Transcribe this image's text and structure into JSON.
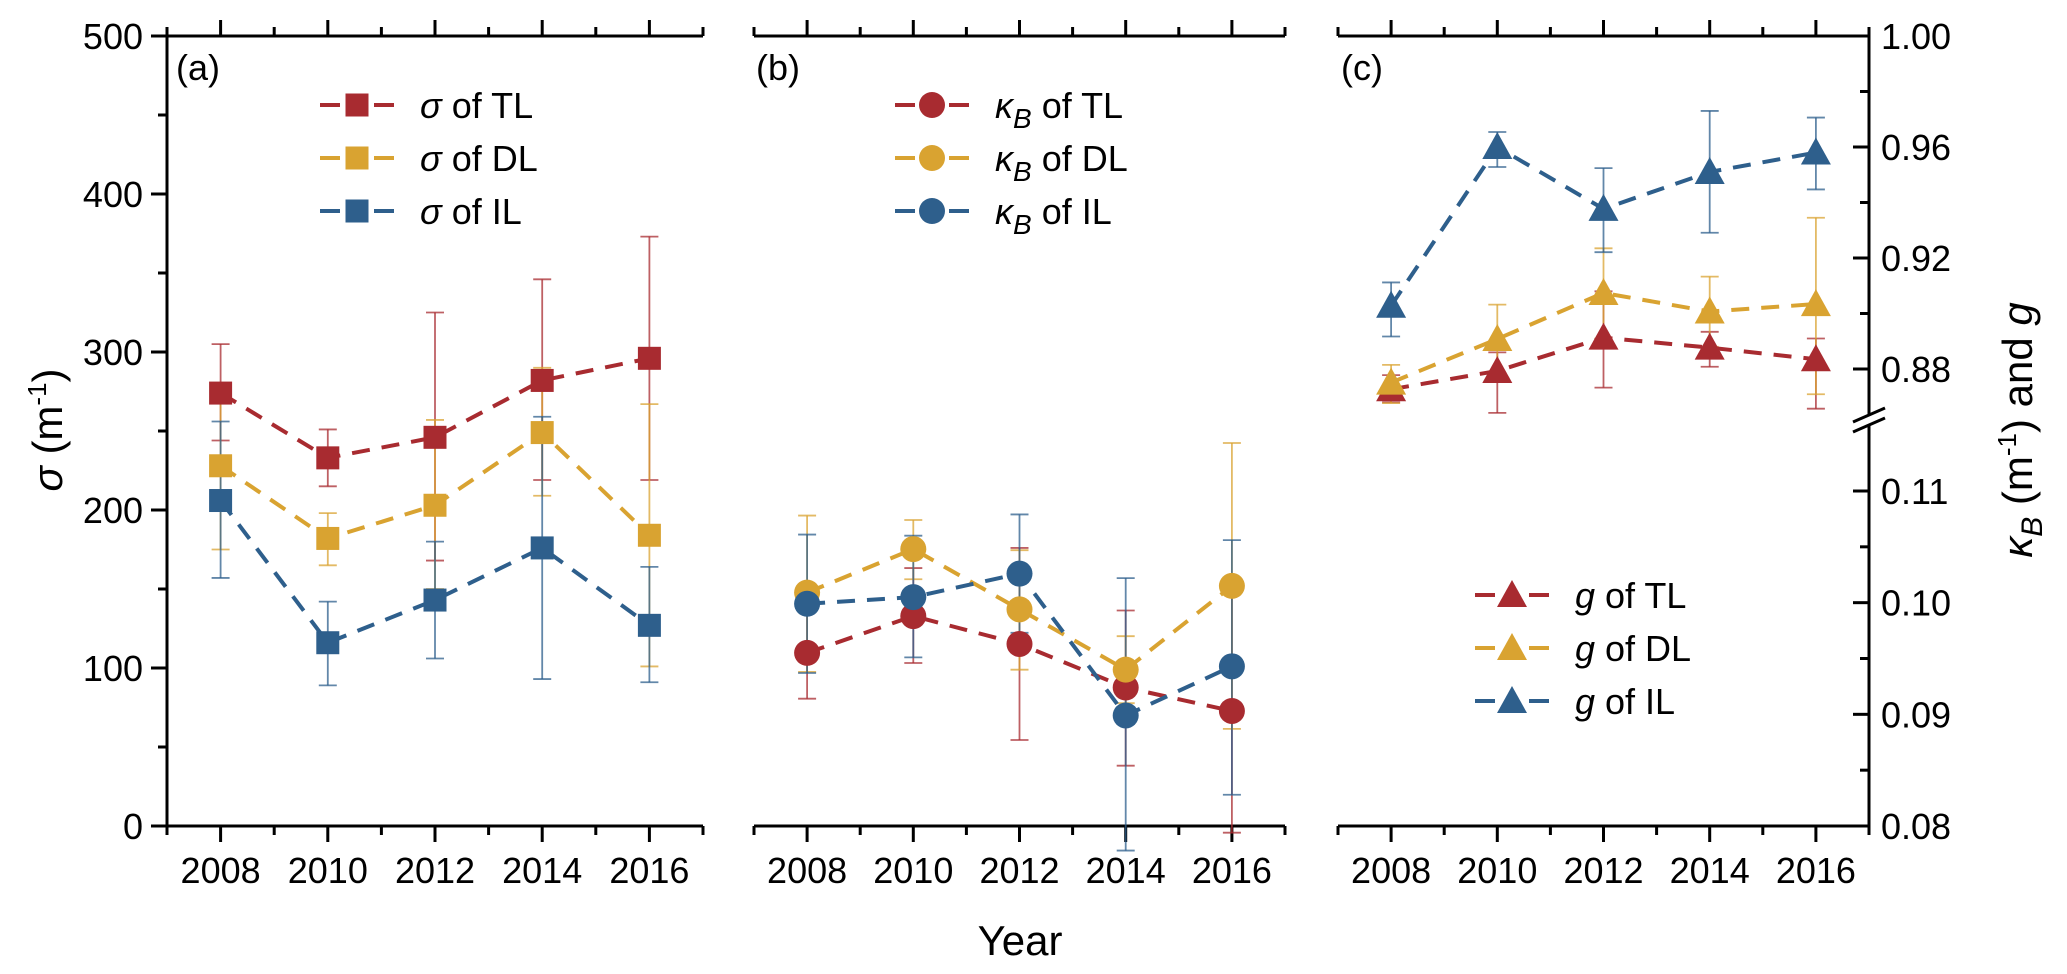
{
  "chart_data": [
    {
      "panel": "(a)",
      "type": "line",
      "marker": "square",
      "x": [
        2008,
        2010,
        2012,
        2014,
        2016
      ],
      "xlabel": "Year",
      "ylabel": "σ (m⁻¹)",
      "ylabel_parts": {
        "symbol": "σ",
        "unit_open": " (m",
        "sup": "-1",
        "unit_close": ")"
      },
      "ylim": [
        0,
        500
      ],
      "yticks": [
        0,
        100,
        200,
        300,
        400,
        500
      ],
      "xlim": [
        2007,
        2017
      ],
      "legend_position": "top-center",
      "series": [
        {
          "name": "σ of TL",
          "symbol": "σ",
          "suffix": " of TL",
          "color": "#A82B30",
          "values": [
            274,
            233,
            246,
            282,
            296
          ],
          "err_upper": [
            305,
            251,
            325,
            346,
            373
          ],
          "err_lower": [
            244,
            215,
            168,
            219,
            219
          ]
        },
        {
          "name": "σ of DL",
          "symbol": "σ",
          "suffix": " of DL",
          "color": "#D9A331",
          "values": [
            228,
            182,
            203,
            249,
            184
          ],
          "err_upper": [
            280,
            198,
            257,
            290,
            267
          ],
          "err_lower": [
            175,
            165,
            150,
            209,
            101
          ]
        },
        {
          "name": "σ of IL",
          "symbol": "σ",
          "suffix": " of IL",
          "color": "#2E5F8C",
          "values": [
            206,
            116,
            143,
            176,
            127
          ],
          "err_upper": [
            256,
            142,
            180,
            259,
            164
          ],
          "err_lower": [
            157,
            89,
            106,
            93,
            91
          ]
        }
      ]
    },
    {
      "panel": "(b)",
      "type": "line",
      "marker": "circle",
      "x": [
        2008,
        2010,
        2012,
        2014,
        2016
      ],
      "xlabel": "Year",
      "ylabel": "κB (m⁻¹)",
      "ylim": [
        0.08,
        0.11
      ],
      "y_axis_shared_with": "(c) right axis, lower segment",
      "xlim": [
        2007,
        2017
      ],
      "legend_position": "top-center",
      "series": [
        {
          "name": "κB of TL",
          "symbol": "κ",
          "sub": "B",
          "suffix": " of TL",
          "color": "#A82B30",
          "values": [
            0.0955,
            0.0988,
            0.0963,
            0.0924,
            0.0903
          ],
          "err_upper": [
            0.0996,
            0.1031,
            0.1049,
            0.0993,
            0.1012
          ],
          "err_lower": [
            0.0914,
            0.0946,
            0.0877,
            0.0854,
            0.0794
          ]
        },
        {
          "name": "κB of DL",
          "symbol": "κ",
          "sub": "B",
          "suffix": " of DL",
          "color": "#D9A331",
          "values": [
            0.1009,
            0.1048,
            0.0994,
            0.094,
            0.1015
          ],
          "err_upper": [
            0.1078,
            0.1074,
            0.1047,
            0.097,
            0.1143
          ],
          "err_lower": [
            0.0938,
            0.1021,
            0.094,
            0.091,
            0.0887
          ]
        },
        {
          "name": "κB of IL",
          "symbol": "κ",
          "sub": "B",
          "suffix": " of IL",
          "color": "#2E5F8C",
          "values": [
            0.0999,
            0.1005,
            0.1026,
            0.0899,
            0.0943
          ],
          "err_upper": [
            0.1061,
            0.106,
            0.1079,
            0.1022,
            0.1056
          ],
          "err_lower": [
            0.0937,
            0.0951,
            0.0973,
            0.0778,
            0.0828
          ]
        }
      ]
    },
    {
      "panel": "(c)",
      "type": "line",
      "marker": "triangle",
      "x": [
        2008,
        2010,
        2012,
        2014,
        2016
      ],
      "xlabel": "Year",
      "ylabel": "κB (m⁻¹) and g",
      "ylabel_parts": {
        "symbol": "κ",
        "sub": "B",
        "unit_open": " (m",
        "sup": "-1",
        "unit_close": ") and ",
        "g": "g"
      },
      "y_axis_side": "right",
      "y_axis_break": true,
      "ylim_upper": [
        0.88,
        1.0
      ],
      "yticks_upper": [
        "0.88",
        "0.92",
        "0.96",
        "1.00"
      ],
      "ylim_lower": [
        0.08,
        0.11
      ],
      "yticks_lower": [
        "0.08",
        "0.09",
        "0.10",
        "0.11"
      ],
      "xlim": [
        2007,
        2017
      ],
      "legend_position": "bottom-center",
      "series": [
        {
          "name": "g of TL",
          "symbol": "g",
          "suffix": " of TL",
          "color": "#A82B30",
          "values": [
            0.8727,
            0.8793,
            0.8913,
            0.8877,
            0.8835
          ],
          "err_upper": [
            0.8778,
            0.886,
            0.908,
            0.8934,
            0.891
          ],
          "err_lower": [
            0.868,
            0.8642,
            0.8733,
            0.8808,
            0.8657
          ]
        },
        {
          "name": "g of DL",
          "symbol": "g",
          "suffix": " of DL",
          "color": "#D9A331",
          "values": [
            0.8751,
            0.8908,
            0.9074,
            0.9007,
            0.9034
          ],
          "err_upper": [
            0.8815,
            0.9032,
            0.9235,
            0.9133,
            0.9345
          ],
          "err_lower": [
            0.8677,
            0.8785,
            0.891,
            0.888,
            0.8709
          ]
        },
        {
          "name": "g of IL",
          "symbol": "g",
          "suffix": " of IL",
          "color": "#2E5F8C",
          "values": [
            0.9028,
            0.96,
            0.9377,
            0.951,
            0.958
          ],
          "err_upper": [
            0.9112,
            0.9654,
            0.9524,
            0.973,
            0.9706
          ],
          "err_lower": [
            0.8917,
            0.9528,
            0.9221,
            0.9291,
            0.9447
          ]
        }
      ]
    }
  ],
  "labels": {
    "panel_a": "(a)",
    "panel_b": "(b)",
    "panel_c": "(c)",
    "xlabel": "Year",
    "x_ticks": [
      "2008",
      "2010",
      "2012",
      "2014",
      "2016"
    ],
    "left_y_ticks": [
      "0",
      "100",
      "200",
      "300",
      "400",
      "500"
    ],
    "right_y_ticks_upper": [
      "0.88",
      "0.92",
      "0.96",
      "1.00"
    ],
    "right_y_ticks_lower": [
      "0.08",
      "0.09",
      "0.10",
      "0.11"
    ],
    "left_ylabel": {
      "symbol": "σ",
      "open": " (m",
      "sup": "-1",
      "close": ")"
    },
    "right_ylabel": {
      "symbol": "κ",
      "sub": "B",
      "open": " (m",
      "sup": "-1",
      "close": ") and ",
      "g": "g"
    }
  }
}
